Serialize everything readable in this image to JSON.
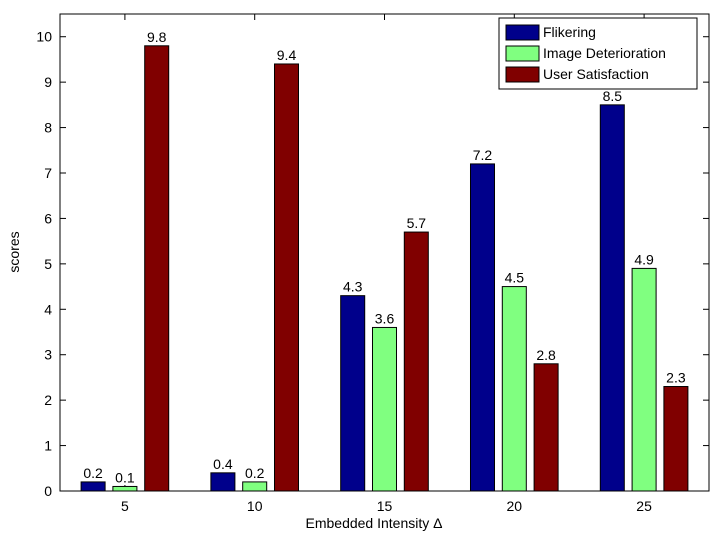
{
  "chart_data": {
    "type": "bar",
    "title": "",
    "xlabel": "Embedded Intensity Δ",
    "ylabel": "scores",
    "categories": [
      "5",
      "10",
      "15",
      "20",
      "25"
    ],
    "ylim": [
      0,
      10.5
    ],
    "yticks": [
      0,
      1,
      2,
      3,
      4,
      5,
      6,
      7,
      8,
      9,
      10
    ],
    "grid": false,
    "legend_position": "top-right",
    "series": [
      {
        "name": "Flikering",
        "color": "#00008b",
        "values": [
          0.2,
          0.4,
          4.3,
          7.2,
          8.5
        ]
      },
      {
        "name": "Image Deterioration",
        "color": "#80ff80",
        "values": [
          0.1,
          0.2,
          3.6,
          4.5,
          4.9
        ]
      },
      {
        "name": "User Satisfaction",
        "color": "#800000",
        "values": [
          9.8,
          9.4,
          5.7,
          2.8,
          2.3
        ]
      }
    ]
  }
}
